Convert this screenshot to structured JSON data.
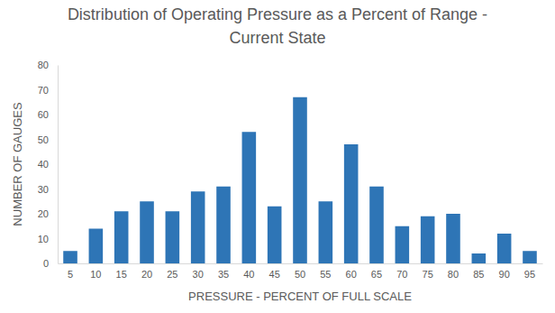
{
  "chart_data": {
    "type": "bar",
    "title": "Distribution of Operating Pressure as a Percent of Range - Current State",
    "x_label": "PRESSURE - PERCENT OF FULL SCALE",
    "y_label": "NUMBER OF GAUGES",
    "categories": [
      "5",
      "10",
      "15",
      "20",
      "25",
      "30",
      "35",
      "40",
      "45",
      "50",
      "55",
      "60",
      "65",
      "70",
      "75",
      "80",
      "85",
      "90",
      "95"
    ],
    "values": [
      5,
      14,
      21,
      25,
      21,
      29,
      31,
      53,
      23,
      67,
      25,
      48,
      31,
      15,
      19,
      20,
      4,
      12,
      5
    ],
    "color": "#2e75b6",
    "ylim": [
      0,
      80
    ],
    "yticks": [
      0,
      10,
      20,
      30,
      40,
      50,
      60,
      70,
      80
    ],
    "grid": false
  }
}
